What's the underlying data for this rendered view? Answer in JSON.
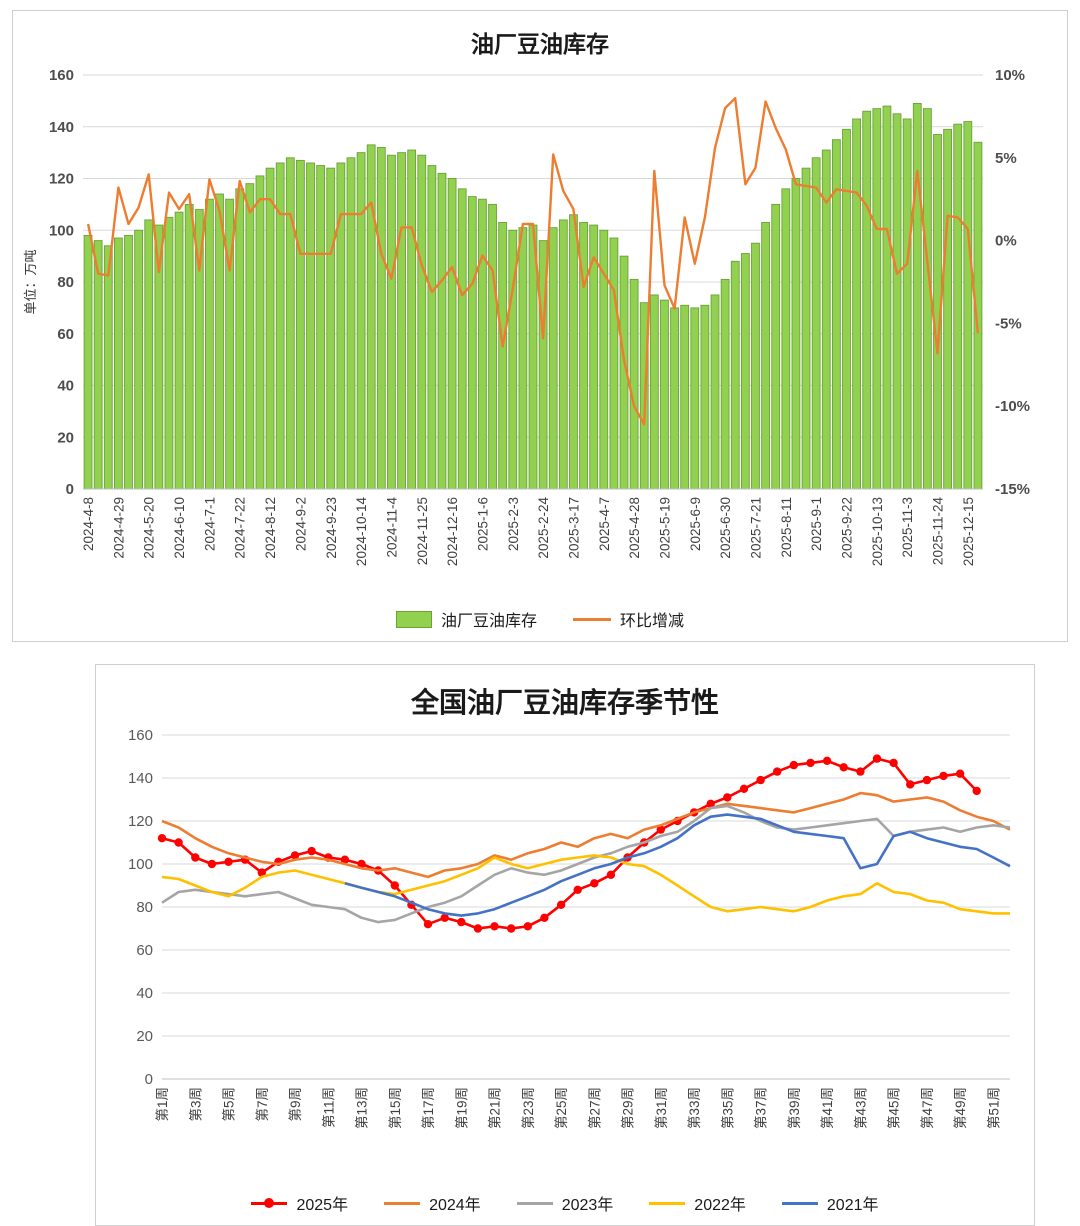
{
  "charts": [
    {
      "title": "油厂豆油库存",
      "unit_label": "单位：万吨",
      "type": "bar-line",
      "bar_series_name": "油厂豆油库存",
      "line_series_name": "环比增减",
      "x_labels": [
        "2024-4-8",
        "2024-4-29",
        "2024-5-20",
        "2024-6-10",
        "2024-7-1",
        "2024-7-22",
        "2024-8-12",
        "2024-9-2",
        "2024-9-23",
        "2024-10-14",
        "2024-11-4",
        "2024-11-25",
        "2024-12-16",
        "2025-1-6",
        "2025-2-3",
        "2025-2-24",
        "2025-3-17",
        "2025-4-7",
        "2025-4-28",
        "2025-5-19",
        "2025-6-9",
        "2025-6-30",
        "2025-7-21",
        "2025-8-11",
        "2025-9-1",
        "2025-9-22",
        "2025-10-13",
        "2025-11-3",
        "2025-11-24",
        "2025-12-15"
      ],
      "label_interval": 3,
      "bar_values": [
        98,
        96,
        94,
        97,
        98,
        100,
        104,
        102,
        105,
        107,
        110,
        108,
        112,
        114,
        112,
        116,
        118,
        121,
        124,
        126,
        128,
        127,
        126,
        125,
        124,
        126,
        128,
        130,
        133,
        132,
        129,
        130,
        131,
        129,
        125,
        122,
        120,
        116,
        113,
        112,
        110,
        103,
        100,
        101,
        102,
        96,
        101,
        104,
        106,
        103,
        102,
        100,
        97,
        90,
        81,
        72,
        75,
        73,
        70,
        71,
        70,
        71,
        75,
        81,
        88,
        91,
        95,
        103,
        110,
        116,
        120,
        124,
        128,
        131,
        135,
        139,
        143,
        146,
        147,
        148,
        145,
        143,
        149,
        147,
        137,
        139,
        141,
        142,
        134
      ],
      "pct_values": [
        1.0,
        -2.0,
        -2.1,
        3.2,
        1.0,
        2.0,
        4.0,
        -1.9,
        2.9,
        1.9,
        2.8,
        -1.8,
        3.7,
        1.8,
        -1.8,
        3.6,
        1.7,
        2.5,
        2.5,
        1.6,
        1.6,
        -0.8,
        -0.8,
        -0.8,
        -0.8,
        1.6,
        1.6,
        1.6,
        2.3,
        -0.8,
        -2.3,
        0.8,
        0.8,
        -1.5,
        -3.1,
        -2.4,
        -1.6,
        -3.3,
        -2.6,
        -0.9,
        -1.8,
        -6.4,
        -2.9,
        1.0,
        1.0,
        -5.9,
        5.2,
        3.0,
        1.9,
        -2.8,
        -1.0,
        -2.0,
        -3.0,
        -7.2,
        -10.0,
        -11.1,
        4.2,
        -2.7,
        -4.1,
        1.4,
        -1.4,
        1.4,
        5.6,
        8.0,
        8.6,
        3.4,
        4.4,
        8.4,
        6.8,
        5.5,
        3.4,
        3.3,
        3.2,
        2.3,
        3.1,
        3.0,
        2.9,
        2.1,
        0.7,
        0.7,
        -2.0,
        -1.4,
        4.2,
        -1.3,
        -6.8,
        1.5,
        1.4,
        0.7,
        -5.6
      ],
      "y_left": {
        "min": 0,
        "max": 160,
        "step": 20
      },
      "y_right": {
        "min": -15,
        "max": 10,
        "step": 5,
        "suffix": "%"
      },
      "colors": {
        "bar": "#92D050",
        "bar_border": "#6AA23A",
        "line": "#ED7D31"
      }
    },
    {
      "title": "全国油厂豆油库存季节性",
      "type": "line",
      "weeks": 52,
      "x_labels": [
        "第1周",
        "第3周",
        "第5周",
        "第7周",
        "第9周",
        "第11周",
        "第13周",
        "第15周",
        "第17周",
        "第19周",
        "第21周",
        "第23周",
        "第25周",
        "第27周",
        "第29周",
        "第31周",
        "第33周",
        "第35周",
        "第37周",
        "第39周",
        "第41周",
        "第43周",
        "第45周",
        "第47周",
        "第49周",
        "第51周"
      ],
      "x_label_interval": 2,
      "y": {
        "min": 0,
        "max": 160,
        "step": 20
      },
      "series": [
        {
          "name": "2025年",
          "color": "#FF0000",
          "marker": true,
          "values": [
            112,
            110,
            103,
            100,
            101,
            102,
            96,
            101,
            104,
            106,
            103,
            102,
            100,
            97,
            90,
            81,
            72,
            75,
            73,
            70,
            71,
            70,
            71,
            75,
            81,
            88,
            91,
            95,
            103,
            110,
            116,
            120,
            124,
            128,
            131,
            135,
            139,
            143,
            146,
            147,
            148,
            145,
            143,
            149,
            147,
            137,
            139,
            141,
            142,
            134,
            null,
            null
          ]
        },
        {
          "name": "2024年",
          "color": "#ED7D31",
          "marker": false,
          "values": [
            120,
            117,
            112,
            108,
            105,
            103,
            101,
            100,
            102,
            103,
            102,
            100,
            98,
            97,
            98,
            96,
            94,
            97,
            98,
            100,
            104,
            102,
            105,
            107,
            110,
            108,
            112,
            114,
            112,
            116,
            118,
            121,
            124,
            126,
            128,
            127,
            126,
            125,
            124,
            126,
            128,
            130,
            133,
            132,
            129,
            130,
            131,
            129,
            125,
            122,
            120,
            116
          ]
        },
        {
          "name": "2023年",
          "color": "#A5A5A5",
          "marker": false,
          "values": [
            82,
            87,
            88,
            87,
            86,
            85,
            86,
            87,
            84,
            81,
            80,
            79,
            75,
            73,
            74,
            77,
            80,
            82,
            85,
            90,
            95,
            98,
            96,
            95,
            97,
            100,
            103,
            105,
            108,
            110,
            113,
            115,
            120,
            126,
            127,
            124,
            120,
            117,
            116,
            117,
            118,
            119,
            120,
            121,
            113,
            115,
            116,
            117,
            115,
            117,
            118,
            117
          ]
        },
        {
          "name": "2022年",
          "color": "#FFC000",
          "marker": false,
          "values": [
            94,
            93,
            90,
            87,
            85,
            89,
            94,
            96,
            97,
            95,
            93,
            91,
            89,
            87,
            86,
            88,
            90,
            92,
            95,
            98,
            103,
            100,
            98,
            100,
            102,
            103,
            104,
            103,
            100,
            99,
            95,
            90,
            85,
            80,
            78,
            79,
            80,
            79,
            78,
            80,
            83,
            85,
            86,
            91,
            87,
            86,
            83,
            82,
            79,
            78,
            77,
            77
          ]
        },
        {
          "name": "2021年",
          "color": "#4472C4",
          "marker": false,
          "values": [
            null,
            null,
            null,
            null,
            null,
            null,
            null,
            null,
            null,
            null,
            null,
            91,
            89,
            87,
            85,
            82,
            79,
            77,
            76,
            77,
            79,
            82,
            85,
            88,
            92,
            95,
            98,
            100,
            103,
            105,
            108,
            112,
            118,
            122,
            123,
            122,
            121,
            118,
            115,
            114,
            113,
            112,
            98,
            100,
            113,
            115,
            112,
            110,
            108,
            107,
            103,
            99
          ]
        }
      ]
    }
  ]
}
